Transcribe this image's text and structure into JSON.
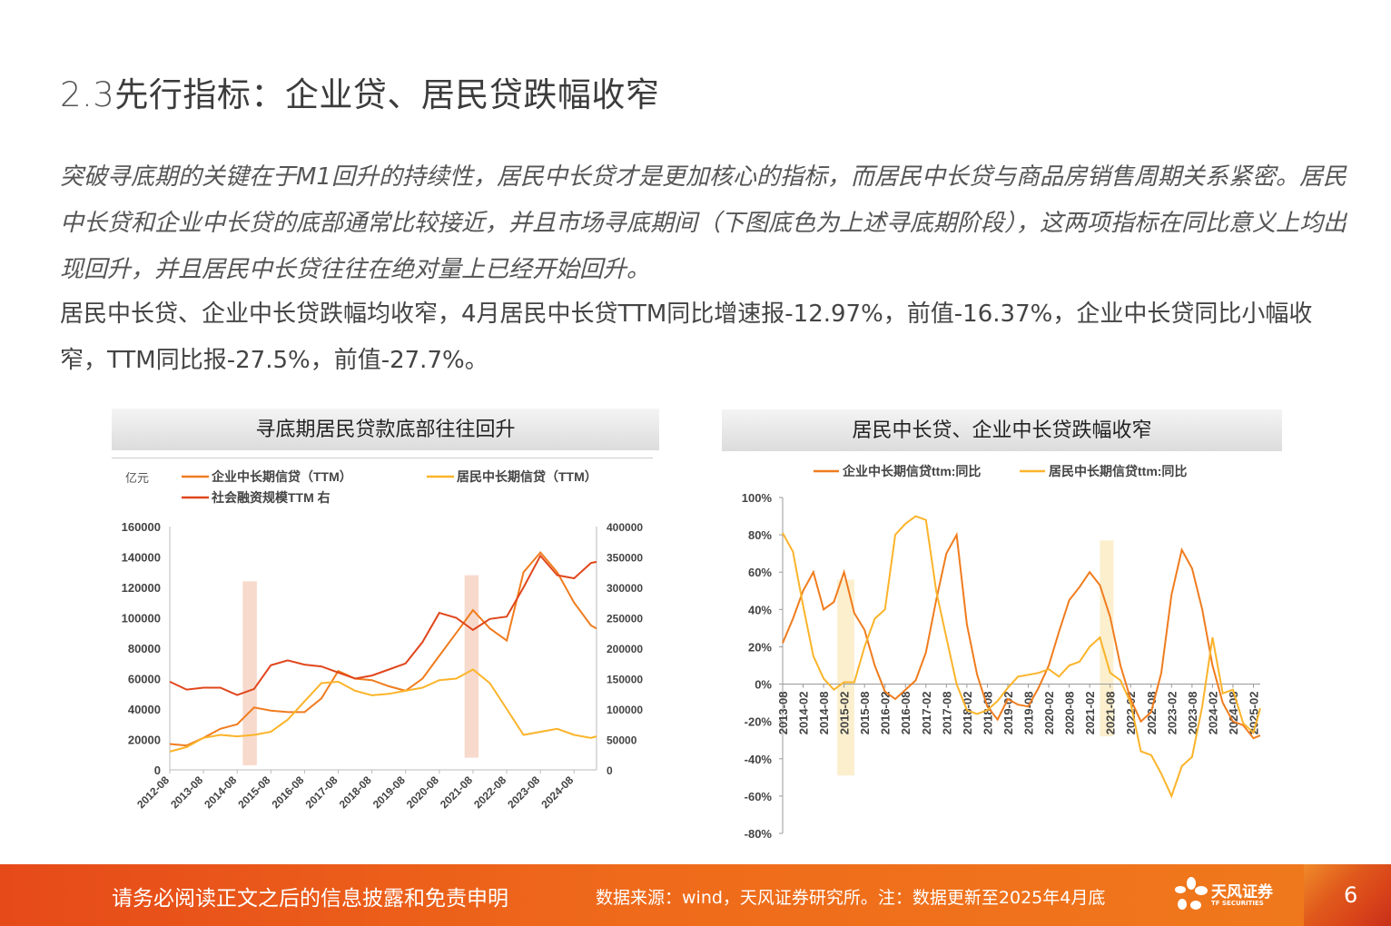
{
  "header": {
    "title_num": "2.3",
    "title_text": "先行指标：企业贷、居民贷跌幅收窄"
  },
  "body": {
    "italic_text": "突破寻底期的关键在于M1回升的持续性，居民中长贷才是更加核心的指标，而居民中长贷与商品房销售周期关系紧密。居民中长贷和企业中长贷的底部通常比较接近，并且市场寻底期间（下图底色为上述寻底期阶段），这两项指标在同比意义上均出现回升，并且居民中长贷往往在绝对量上已经开始回升。",
    "normal_text": "居民中长贷、企业中长贷跌幅均收窄，4月居民中长贷TTM同比增速报-12.97%，前值-16.37%，企业中长贷同比小幅收窄，TTM同比报-27.5%，前值-27.7%。"
  },
  "footer": {
    "disclaimer": "请务必阅读正文之后的信息披露和免责申明",
    "source": "数据来源：wind，天风证券研究所。注：数据更新至2025年4月底",
    "logo_cn": "天风证券",
    "logo_en": "TF SECURITIES",
    "page_number": "6",
    "color": "#ee6a1b"
  },
  "chart_data": [
    {
      "type": "line",
      "title": "寻底期居民贷款底部往往回升",
      "unit_label": "亿元",
      "ylim_left": [
        0,
        160000
      ],
      "ylim_right": [
        0,
        400000
      ],
      "yticks_left": [
        "0",
        "20000",
        "40000",
        "60000",
        "80000",
        "100000",
        "120000",
        "140000",
        "160000"
      ],
      "yticks_right": [
        "0",
        "50000",
        "100000",
        "150000",
        "200000",
        "250000",
        "300000",
        "350000",
        "400000"
      ],
      "xticks": [
        "2012-08",
        "2013-08",
        "2014-08",
        "2015-08",
        "2016-08",
        "2017-08",
        "2018-08",
        "2019-08",
        "2020-08",
        "2021-08",
        "2022-08",
        "2023-08",
        "2024-08"
      ],
      "shaded_periods": [
        {
          "start": "2014-10",
          "end": "2015-03"
        },
        {
          "start": "2021-05",
          "end": "2021-10"
        }
      ],
      "x": [
        "2012-08",
        "2013-02",
        "2013-08",
        "2014-02",
        "2014-08",
        "2015-02",
        "2015-08",
        "2016-02",
        "2016-08",
        "2017-02",
        "2017-08",
        "2018-02",
        "2018-08",
        "2019-02",
        "2019-08",
        "2020-02",
        "2020-08",
        "2021-02",
        "2021-08",
        "2022-02",
        "2022-08",
        "2023-02",
        "2023-08",
        "2024-02",
        "2024-08",
        "2025-02",
        "2025-04"
      ],
      "series": [
        {
          "name": "企业中长期信贷（TTM）",
          "axis": "left",
          "color": "#f07c1e",
          "values": [
            17000,
            16000,
            21000,
            27000,
            30000,
            41000,
            39000,
            38000,
            38000,
            47000,
            65000,
            60000,
            59000,
            55000,
            52000,
            60000,
            75000,
            90000,
            105000,
            93000,
            85000,
            130000,
            143000,
            130000,
            110000,
            95000,
            93000
          ]
        },
        {
          "name": "居民中长期信贷（TTM）",
          "axis": "left",
          "color": "#fbb42a",
          "values": [
            12000,
            15000,
            21000,
            23000,
            22000,
            23000,
            25000,
            33000,
            45000,
            57000,
            58000,
            52000,
            49000,
            50000,
            52000,
            54000,
            59000,
            60000,
            66000,
            57000,
            40000,
            23000,
            25000,
            27000,
            23000,
            21000,
            22000
          ]
        },
        {
          "name": "社会融资规模TTM 右",
          "axis": "right",
          "color": "#e0461c",
          "values": [
            145000,
            132000,
            135000,
            135000,
            123000,
            133000,
            172000,
            180000,
            173000,
            170000,
            160000,
            150000,
            155000,
            165000,
            175000,
            210000,
            258000,
            250000,
            230000,
            248000,
            252000,
            300000,
            352000,
            320000,
            315000,
            340000,
            342000
          ]
        }
      ]
    },
    {
      "type": "line",
      "title": "居民中长贷、企业中长贷跌幅收窄",
      "ylim": [
        -80,
        100
      ],
      "yticks": [
        "-80%",
        "-60%",
        "-40%",
        "-20%",
        "0%",
        "20%",
        "40%",
        "60%",
        "80%",
        "100%"
      ],
      "xticks": [
        "2013-08",
        "2014-02",
        "2014-08",
        "2015-02",
        "2015-08",
        "2016-02",
        "2016-08",
        "2017-02",
        "2017-08",
        "2018-02",
        "2018-08",
        "2019-02",
        "2019-08",
        "2020-02",
        "2020-08",
        "2021-02",
        "2021-08",
        "2022-02",
        "2022-08",
        "2023-02",
        "2023-08",
        "2024-02",
        "2024-08",
        "2025-02"
      ],
      "shaded_periods": [
        {
          "start": "2014-12",
          "end": "2015-05"
        },
        {
          "start": "2021-05",
          "end": "2021-09"
        }
      ],
      "x": [
        "2013-08",
        "2013-11",
        "2014-02",
        "2014-05",
        "2014-08",
        "2014-11",
        "2015-02",
        "2015-05",
        "2015-08",
        "2015-11",
        "2016-02",
        "2016-05",
        "2016-08",
        "2016-11",
        "2017-02",
        "2017-05",
        "2017-08",
        "2017-11",
        "2018-02",
        "2018-05",
        "2018-08",
        "2018-11",
        "2019-02",
        "2019-05",
        "2019-08",
        "2019-11",
        "2020-02",
        "2020-05",
        "2020-08",
        "2020-11",
        "2021-02",
        "2021-05",
        "2021-08",
        "2021-11",
        "2022-02",
        "2022-05",
        "2022-08",
        "2022-11",
        "2023-02",
        "2023-05",
        "2023-08",
        "2023-11",
        "2024-02",
        "2024-05",
        "2024-08",
        "2024-11",
        "2025-02",
        "2025-04"
      ],
      "series": [
        {
          "name": "企业中长期信贷ttm:同比",
          "color": "#f07c1e",
          "values": [
            22,
            35,
            50,
            60,
            40,
            44,
            60,
            38,
            29,
            10,
            -4,
            -8,
            -3,
            2,
            17,
            45,
            70,
            80,
            32,
            5,
            -12,
            -19,
            -8,
            -11,
            -12,
            -2,
            10,
            28,
            45,
            52,
            60,
            53,
            36,
            10,
            -8,
            -20,
            -15,
            6,
            48,
            72,
            62,
            40,
            10,
            -10,
            -20,
            -22,
            -29,
            -27.5
          ]
        },
        {
          "name": "居民中长期信贷ttm:同比",
          "color": "#fbb42a",
          "values": [
            81,
            71,
            42,
            15,
            3,
            -3,
            1,
            1,
            20,
            35,
            40,
            80,
            86,
            90,
            88,
            50,
            25,
            0,
            -14,
            -16,
            -14,
            -9,
            -2,
            4,
            5,
            6,
            8,
            4,
            10,
            12,
            20,
            25,
            6,
            2,
            -10,
            -36,
            -38,
            -48,
            -60,
            -44,
            -39,
            -12,
            25,
            -5,
            -3,
            -21,
            -26,
            -12.97
          ]
        }
      ]
    }
  ]
}
